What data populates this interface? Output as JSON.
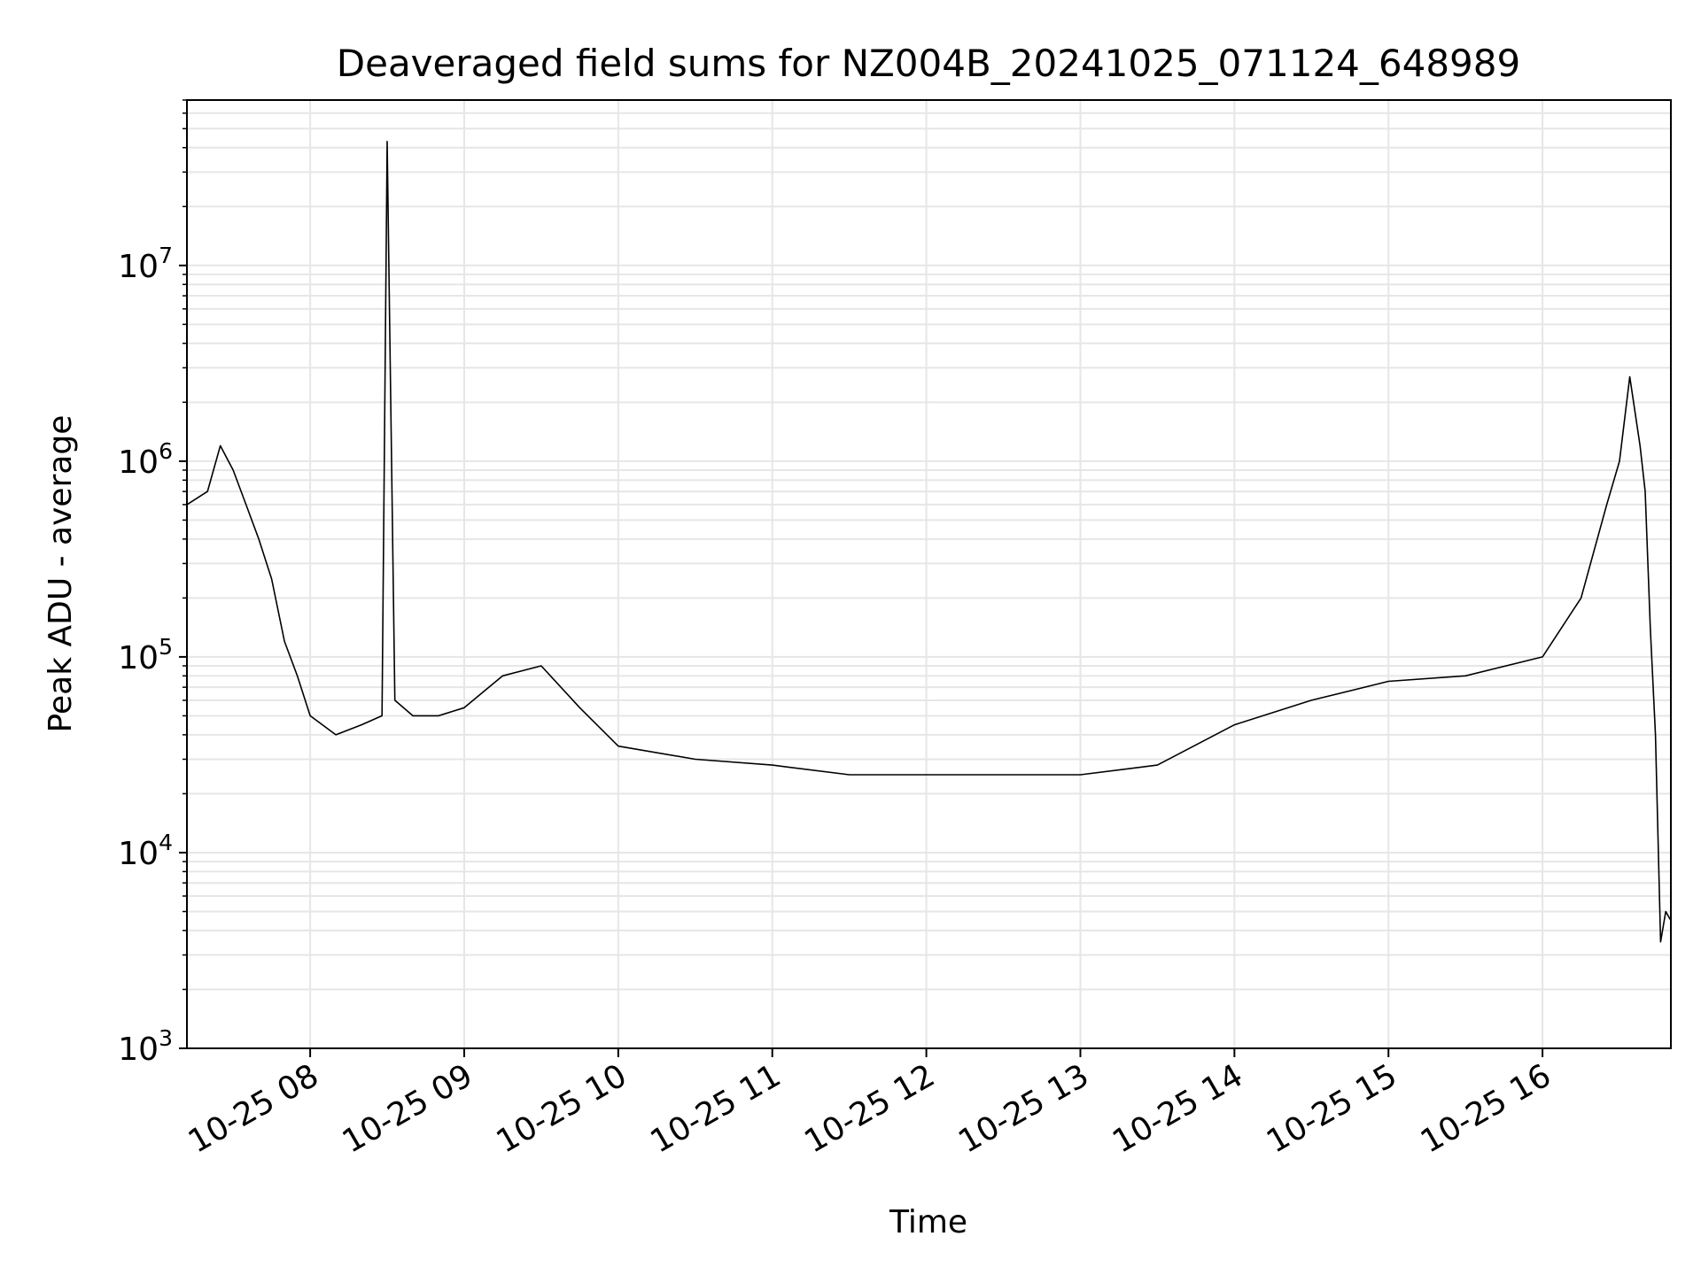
{
  "chart_data": {
    "type": "line",
    "title": "Deaveraged field sums for NZ004B_20241025_071124_648989",
    "xlabel": "Time",
    "ylabel": "Peak ADU - average",
    "yscale": "log",
    "ylim": [
      1000,
      70000000
    ],
    "xlim": [
      "2024-10-25 07:12",
      "2024-10-25 16:50"
    ],
    "grid": true,
    "line_color": "#000000",
    "x_tick_labels": [
      "10-25 08",
      "10-25 09",
      "10-25 10",
      "10-25 11",
      "10-25 12",
      "10-25 13",
      "10-25 14",
      "10-25 15",
      "10-25 16"
    ],
    "y_tick_labels": [
      {
        "base": "10",
        "exp": "3",
        "value": 1000
      },
      {
        "base": "10",
        "exp": "4",
        "value": 10000
      },
      {
        "base": "10",
        "exp": "5",
        "value": 100000
      },
      {
        "base": "10",
        "exp": "6",
        "value": 1000000
      },
      {
        "base": "10",
        "exp": "7",
        "value": 10000000
      }
    ],
    "series": [
      {
        "x": [
          "2024-10-25 07:12",
          "2024-10-25 07:20",
          "2024-10-25 07:25",
          "2024-10-25 07:30",
          "2024-10-25 07:35",
          "2024-10-25 07:40",
          "2024-10-25 07:45",
          "2024-10-25 07:50",
          "2024-10-25 07:55",
          "2024-10-25 08:00",
          "2024-10-25 08:10",
          "2024-10-25 08:20",
          "2024-10-25 08:28",
          "2024-10-25 08:30",
          "2024-10-25 08:33",
          "2024-10-25 08:40",
          "2024-10-25 08:50",
          "2024-10-25 09:00",
          "2024-10-25 09:15",
          "2024-10-25 09:30",
          "2024-10-25 09:45",
          "2024-10-25 10:00",
          "2024-10-25 10:30",
          "2024-10-25 11:00",
          "2024-10-25 11:30",
          "2024-10-25 12:00",
          "2024-10-25 12:30",
          "2024-10-25 13:00",
          "2024-10-25 13:30",
          "2024-10-25 14:00",
          "2024-10-25 14:30",
          "2024-10-25 15:00",
          "2024-10-25 15:30",
          "2024-10-25 16:00",
          "2024-10-25 16:15",
          "2024-10-25 16:25",
          "2024-10-25 16:30",
          "2024-10-25 16:34",
          "2024-10-25 16:38",
          "2024-10-25 16:40",
          "2024-10-25 16:42",
          "2024-10-25 16:44",
          "2024-10-25 16:46",
          "2024-10-25 16:48",
          "2024-10-25 16:50"
        ],
        "y": [
          600000,
          700000,
          1200000,
          900000,
          600000,
          400000,
          250000,
          120000,
          80000,
          50000,
          40000,
          45000,
          50000,
          43000000,
          60000,
          50000,
          50000,
          55000,
          80000,
          90000,
          55000,
          35000,
          30000,
          28000,
          25000,
          25000,
          25000,
          25000,
          28000,
          45000,
          60000,
          75000,
          80000,
          100000,
          200000,
          600000,
          1000000,
          2700000,
          1200000,
          700000,
          140000,
          40000,
          3500,
          5000,
          4500
        ]
      }
    ]
  }
}
